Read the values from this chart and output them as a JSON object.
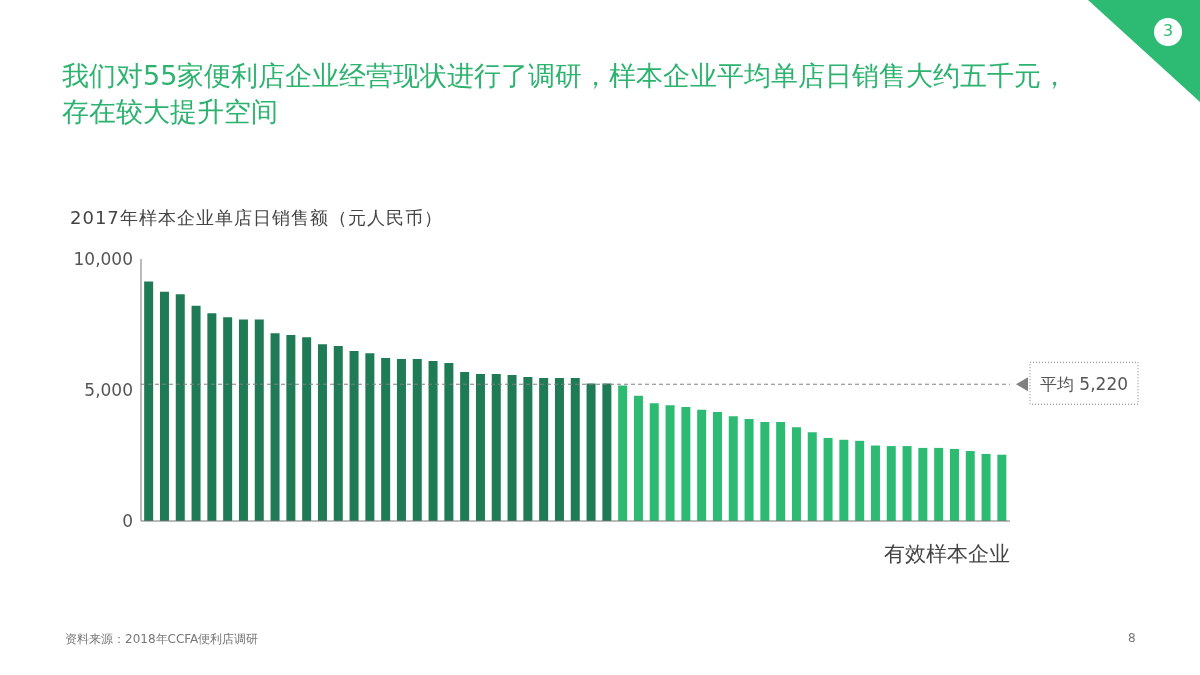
{
  "chart_data": {
    "type": "bar",
    "title": "我们对55家便利店企业经营现状进行了调研，样本企业平均单店日销售大约五千元，存在较大提升空间",
    "ylabel": "2017年样本企业单店日销售额（元人民币）",
    "xlabel": "有效样本企业",
    "categories": [
      null,
      null,
      null,
      null,
      null,
      null,
      null,
      null,
      null,
      null,
      null,
      null,
      null,
      null,
      null,
      null,
      null,
      null,
      null,
      null,
      null,
      null,
      null,
      null,
      null,
      null,
      null,
      null,
      null,
      null,
      null,
      null,
      null,
      null,
      null,
      null,
      null,
      null,
      null,
      null,
      null,
      null,
      null,
      null,
      null,
      null,
      null,
      null,
      null,
      null,
      null,
      null,
      null,
      null,
      null
    ],
    "values": [
      9140,
      8750,
      8650,
      8220,
      7930,
      7780,
      7690,
      7690,
      7170,
      7100,
      7010,
      6750,
      6680,
      6490,
      6400,
      6220,
      6180,
      6180,
      6110,
      6030,
      5690,
      5610,
      5610,
      5570,
      5500,
      5460,
      5460,
      5460,
      5250,
      5250,
      5170,
      4780,
      4490,
      4420,
      4350,
      4250,
      4160,
      4000,
      3890,
      3780,
      3780,
      3580,
      3390,
      3170,
      3100,
      3060,
      2880,
      2860,
      2860,
      2790,
      2790,
      2750,
      2670,
      2560,
      2530
    ],
    "colors": [
      "#1e7b55",
      "#1e7b55",
      "#1e7b55",
      "#1e7b55",
      "#1e7b55",
      "#1e7b55",
      "#1e7b55",
      "#1e7b55",
      "#1e7b55",
      "#1e7b55",
      "#1e7b55",
      "#1e7b55",
      "#1e7b55",
      "#1e7b55",
      "#1e7b55",
      "#1e7b55",
      "#1e7b55",
      "#1e7b55",
      "#1e7b55",
      "#1e7b55",
      "#1e7b55",
      "#1e7b55",
      "#1e7b55",
      "#1e7b55",
      "#1e7b55",
      "#1e7b55",
      "#1e7b55",
      "#1e7b55",
      "#1e7b55",
      "#1e7b55",
      "#2dbb74",
      "#2dbb74",
      "#2dbb74",
      "#2dbb74",
      "#2dbb74",
      "#2dbb74",
      "#2dbb74",
      "#2dbb74",
      "#2dbb74",
      "#2dbb74",
      "#2dbb74",
      "#2dbb74",
      "#2dbb74",
      "#2dbb74",
      "#2dbb74",
      "#2dbb74",
      "#2dbb74",
      "#2dbb74",
      "#2dbb74",
      "#2dbb74",
      "#2dbb74",
      "#2dbb74",
      "#2dbb74",
      "#2dbb74",
      "#2dbb74"
    ],
    "ylim": [
      0,
      10000
    ],
    "yticks": [
      0,
      {
        "value": 5000,
        "label": "5,000"
      },
      {
        "value": 10000,
        "label": "10,000"
      }
    ],
    "ref_lines": [
      {
        "axis": "y",
        "value": 5220,
        "label": "平均 5,220",
        "color": "#808080",
        "line_style": "dashed"
      }
    ],
    "annotations": [
      "资料来源：2018年CCFA便利店调研",
      "8",
      "3"
    ]
  }
}
